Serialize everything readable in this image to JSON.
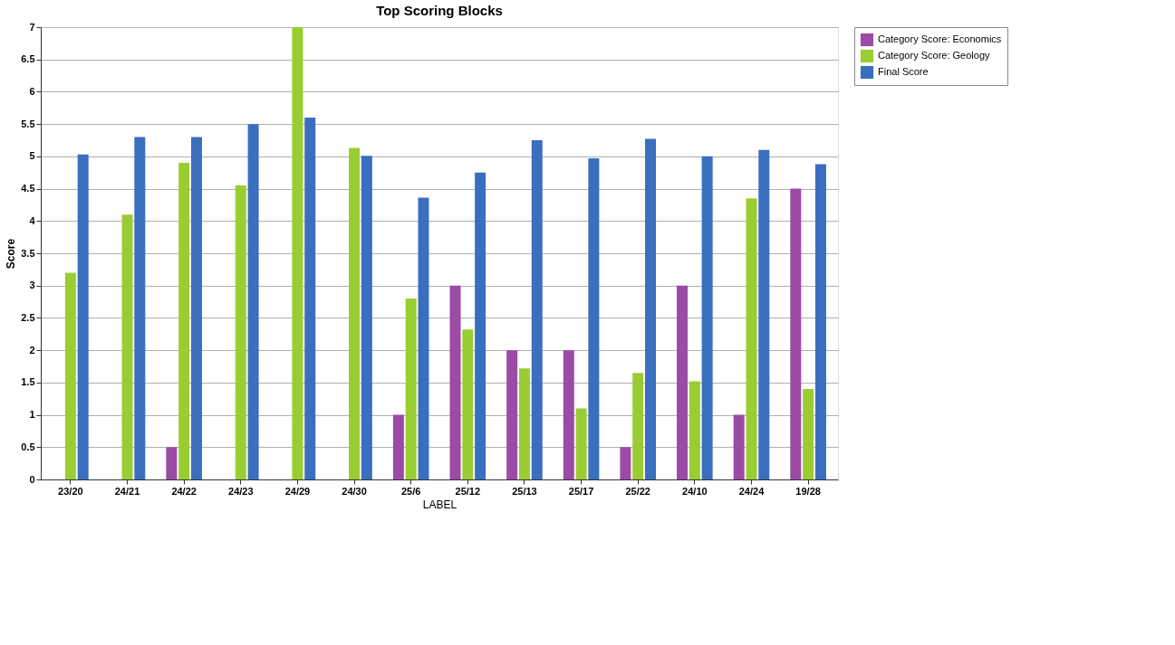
{
  "chart_data": {
    "type": "bar",
    "title": "Top Scoring Blocks",
    "xlabel": "LABEL",
    "ylabel": "Score",
    "categories": [
      "23/20",
      "24/21",
      "24/22",
      "24/23",
      "24/29",
      "24/30",
      "25/6",
      "25/12",
      "25/13",
      "25/17",
      "25/22",
      "24/10",
      "24/24",
      "19/28"
    ],
    "series": [
      {
        "name": "Category Score: Economics",
        "color": "#9b4aa5",
        "values": [
          0,
          0,
          0.5,
          0,
          0,
          0,
          1,
          3,
          2,
          2,
          0.5,
          3,
          1,
          4.5
        ]
      },
      {
        "name": "Category Score: Geology",
        "color": "#9acd32",
        "values": [
          3.2,
          4.1,
          4.9,
          4.55,
          7,
          5.13,
          2.8,
          2.32,
          1.72,
          1.1,
          1.65,
          1.52,
          4.35,
          1.4
        ]
      },
      {
        "name": "Final Score",
        "color": "#3a6ebf",
        "values": [
          5.03,
          5.3,
          5.3,
          5.5,
          5.6,
          5.01,
          4.36,
          4.75,
          5.25,
          4.97,
          5.27,
          5.0,
          5.1,
          4.88
        ]
      }
    ],
    "ylim": [
      0,
      7
    ],
    "yticks": [
      0,
      0.5,
      1,
      1.5,
      2,
      2.5,
      3,
      3.5,
      4,
      4.5,
      5,
      5.5,
      6,
      6.5,
      7
    ],
    "grid": "y",
    "legend": "top right"
  }
}
